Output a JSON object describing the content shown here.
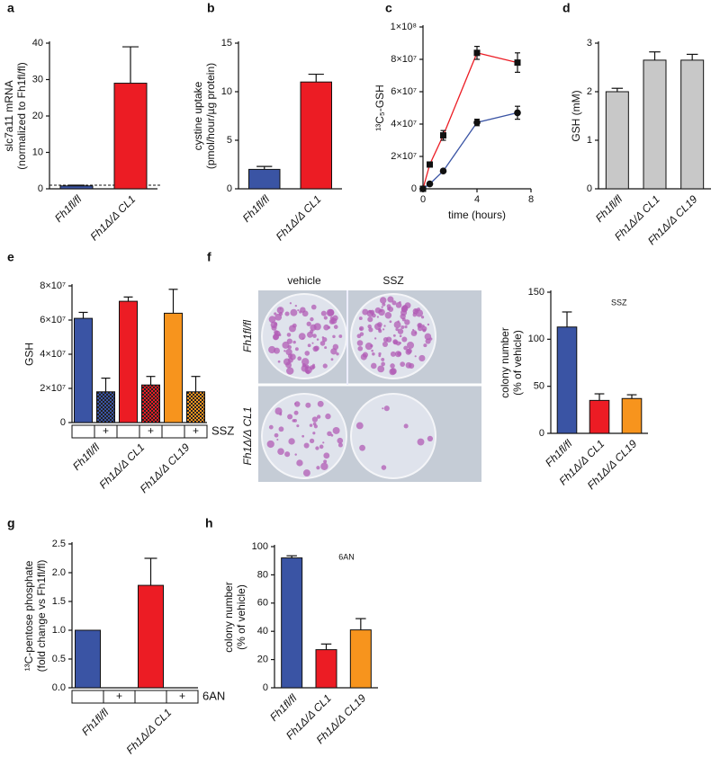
{
  "chart_data": [
    {
      "panel": "a",
      "type": "bar",
      "ylabel": [
        "slc7a11 mRNA",
        "(normalized to Fh1fl/fl)"
      ],
      "categories": [
        "Fh1fl/fl",
        "Fh1Δ/Δ CL1"
      ],
      "values": [
        0.8,
        29
      ],
      "errors": [
        0.2,
        10
      ],
      "colors": [
        "#3a54a4",
        "#ec1c24"
      ],
      "ylim": [
        0,
        40
      ],
      "yticks": [
        0,
        10,
        20,
        30,
        40
      ],
      "reference_line": 1
    },
    {
      "panel": "b",
      "type": "bar",
      "ylabel": [
        "cystine uptake",
        "(pmol/hour/µg protein)"
      ],
      "categories": [
        "Fh1fl/fl",
        "Fh1Δ/Δ CL1"
      ],
      "values": [
        2,
        11
      ],
      "errors": [
        0.3,
        0.8
      ],
      "colors": [
        "#3a54a4",
        "#ec1c24"
      ],
      "ylim": [
        0,
        15
      ],
      "yticks": [
        0,
        5,
        10,
        15
      ]
    },
    {
      "panel": "c",
      "type": "line",
      "ylabel": [
        "¹³C₅-GSH"
      ],
      "xlabel": "time (hours)",
      "x": [
        0,
        0.5,
        1.5,
        4,
        7
      ],
      "xlim": [
        0,
        8
      ],
      "xticks": [
        0,
        4,
        8
      ],
      "ylim": [
        0,
        100000000
      ],
      "yticks": [
        0,
        {
          "value": 20000000,
          "label": "2×10⁷"
        },
        {
          "value": 40000000,
          "label": "4×10⁷"
        },
        {
          "value": 60000000,
          "label": "6×10⁷"
        },
        {
          "value": 80000000,
          "label": "8×10⁷"
        },
        {
          "value": 100000000,
          "label": "1×10⁸"
        }
      ],
      "series": [
        {
          "color": "#ec1c24",
          "marker": "square",
          "values": [
            0,
            15000000,
            33000000,
            84000000,
            78000000
          ],
          "errors": [
            0,
            1000000,
            3000000,
            4000000,
            6000000
          ]
        },
        {
          "color": "#3a54a4",
          "marker": "circle",
          "values": [
            0,
            3000000,
            11000000,
            41000000,
            47000000
          ],
          "errors": [
            0,
            1000000,
            1000000,
            2000000,
            4000000
          ]
        }
      ]
    },
    {
      "panel": "d",
      "type": "bar",
      "ylabel": [
        "GSH (mM)"
      ],
      "categories": [
        "Fh1fl/fl",
        "Fh1Δ/Δ CL1",
        "Fh1Δ/Δ CL19"
      ],
      "values": [
        2.0,
        2.65,
        2.65
      ],
      "errors": [
        0.07,
        0.17,
        0.12
      ],
      "colors": [
        "#c8c8c8",
        "#c8c8c8",
        "#c8c8c8"
      ],
      "ylim": [
        0,
        3
      ],
      "yticks": [
        0,
        1,
        2,
        3
      ]
    },
    {
      "panel": "e",
      "type": "bar",
      "ylabel": [
        "GSH"
      ],
      "groups": [
        "Fh1fl/fl",
        "Fh1Δ/Δ CL1",
        "Fh1Δ/Δ CL19"
      ],
      "values": [
        61000000,
        18000000,
        71000000,
        22000000,
        64000000,
        18000000
      ],
      "errors": [
        3500000,
        8000000,
        2500000,
        5000000,
        14000000,
        9000000
      ],
      "colors": [
        "#3a54a4",
        "#3a54a4",
        "#ec1c24",
        "#ec1c24",
        "#f7941d",
        "#f7941d"
      ],
      "hatched": [
        false,
        true,
        false,
        true,
        false,
        true
      ],
      "treatment_marks": [
        null,
        "+",
        null,
        "+",
        null,
        "+"
      ],
      "treatment_label": "SSZ",
      "ylim": [
        0,
        80000000
      ],
      "yticks": [
        0,
        {
          "value": 20000000,
          "label": "2×10⁷"
        },
        {
          "value": 40000000,
          "label": "4×10⁷"
        },
        {
          "value": 60000000,
          "label": "6×10⁷"
        },
        {
          "value": 80000000,
          "label": "8×10⁷"
        }
      ]
    },
    {
      "panel": "f",
      "type": "bar",
      "ylabel": [
        "colony number",
        "(% of vehicle)"
      ],
      "note": "SSZ",
      "image_columns": [
        "vehicle",
        "SSZ"
      ],
      "image_rows": [
        "Fh1fl/fl",
        "Fh1Δ/Δ CL1"
      ],
      "categories": [
        "Fh1fl/fl",
        "Fh1Δ/Δ CL1",
        "Fh1Δ/Δ CL19"
      ],
      "values": [
        113,
        35,
        37
      ],
      "errors": [
        16,
        7,
        4
      ],
      "colors": [
        "#3a54a4",
        "#ec1c24",
        "#f7941d"
      ],
      "ylim": [
        0,
        150
      ],
      "yticks": [
        0,
        50,
        100,
        150
      ]
    },
    {
      "panel": "g",
      "type": "bar",
      "ylabel": [
        "¹³C-pentose phosphate",
        "(fold change vs Fh1fl/fl)"
      ],
      "groups": [
        "Fh1fl/fl",
        "Fh1Δ/Δ CL1"
      ],
      "values": [
        1.0,
        null,
        1.78,
        null
      ],
      "errors": [
        null,
        null,
        0.47,
        null
      ],
      "colors": [
        "#3a54a4",
        "#3a54a4",
        "#ec1c24",
        "#ec1c24"
      ],
      "treatment_marks": [
        null,
        "+",
        null,
        "+"
      ],
      "treatment_label": "6AN",
      "ylim": [
        0,
        2.5
      ],
      "yticks": [
        {
          "value": 0,
          "label": "0.0"
        },
        0.5,
        {
          "value": 1,
          "label": "1.0"
        },
        1.5,
        {
          "value": 2,
          "label": "2.0"
        },
        2.5
      ]
    },
    {
      "panel": "h",
      "type": "bar",
      "ylabel": [
        "colony number",
        "(% of vehicle)"
      ],
      "note": "6AN",
      "categories": [
        "Fh1fl/fl",
        "Fh1Δ/Δ CL1",
        "Fh1Δ/Δ CL19"
      ],
      "values": [
        92,
        27,
        41
      ],
      "errors": [
        1.5,
        4,
        8
      ],
      "colors": [
        "#3a54a4",
        "#ec1c24",
        "#f7941d"
      ],
      "ylim": [
        0,
        100
      ],
      "yticks": [
        0,
        20,
        40,
        60,
        80,
        100
      ]
    }
  ]
}
